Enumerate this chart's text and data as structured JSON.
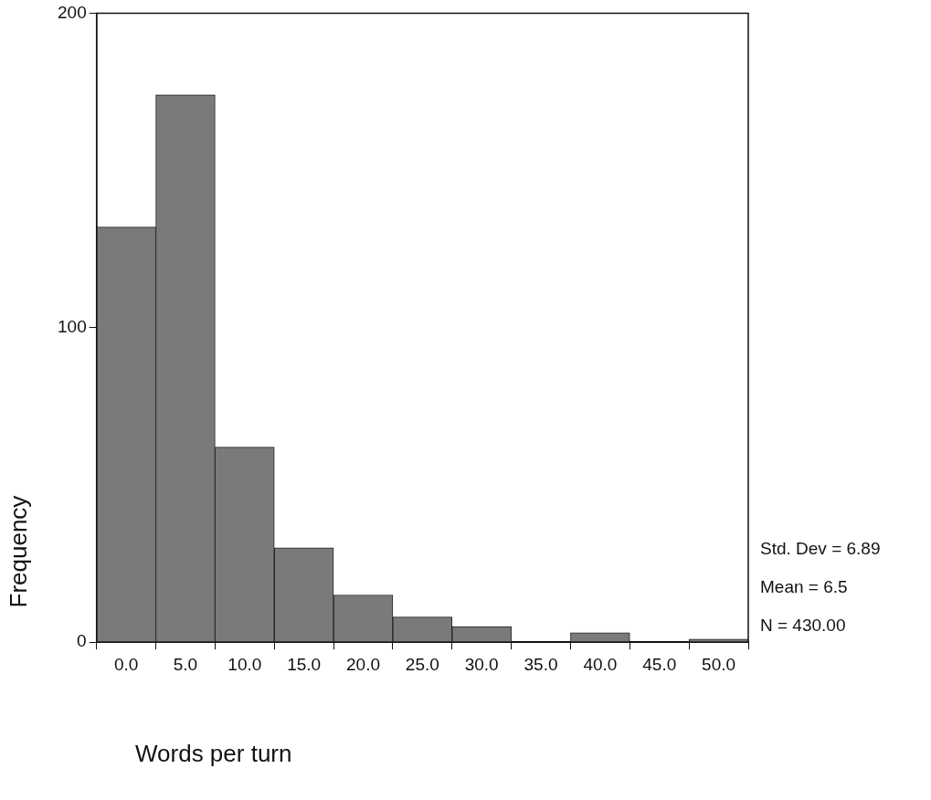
{
  "chart_data": {
    "type": "histogram",
    "xlabel": "Words per turn",
    "ylabel": "Frequency",
    "bins": [
      -2.5,
      2.5,
      7.5,
      12.5,
      17.5,
      22.5,
      27.5,
      32.5,
      37.5,
      42.5,
      47.5,
      52.5
    ],
    "values": [
      132,
      174,
      62,
      30,
      15,
      8,
      5,
      0,
      3,
      0,
      1
    ],
    "color": "#7a7a7a",
    "xlim": [
      -2.5,
      52.5
    ],
    "xticks": [
      {
        "value": 0,
        "label": "0.0"
      },
      {
        "value": 5,
        "label": "5.0"
      },
      {
        "value": 10,
        "label": "10.0"
      },
      {
        "value": 15,
        "label": "15.0"
      },
      {
        "value": 20,
        "label": "20.0"
      },
      {
        "value": 25,
        "label": "25.0"
      },
      {
        "value": 30,
        "label": "30.0"
      },
      {
        "value": 35,
        "label": "35.0"
      },
      {
        "value": 40,
        "label": "40.0"
      },
      {
        "value": 45,
        "label": "45.0"
      },
      {
        "value": 50,
        "label": "50.0"
      }
    ],
    "ylim": [
      0,
      200
    ],
    "yticks": [
      0,
      100,
      200
    ],
    "grid": false,
    "legend": false,
    "annotations": [
      "Std. Dev = 6.89",
      "Mean = 6.5",
      "N = 430.00"
    ]
  }
}
